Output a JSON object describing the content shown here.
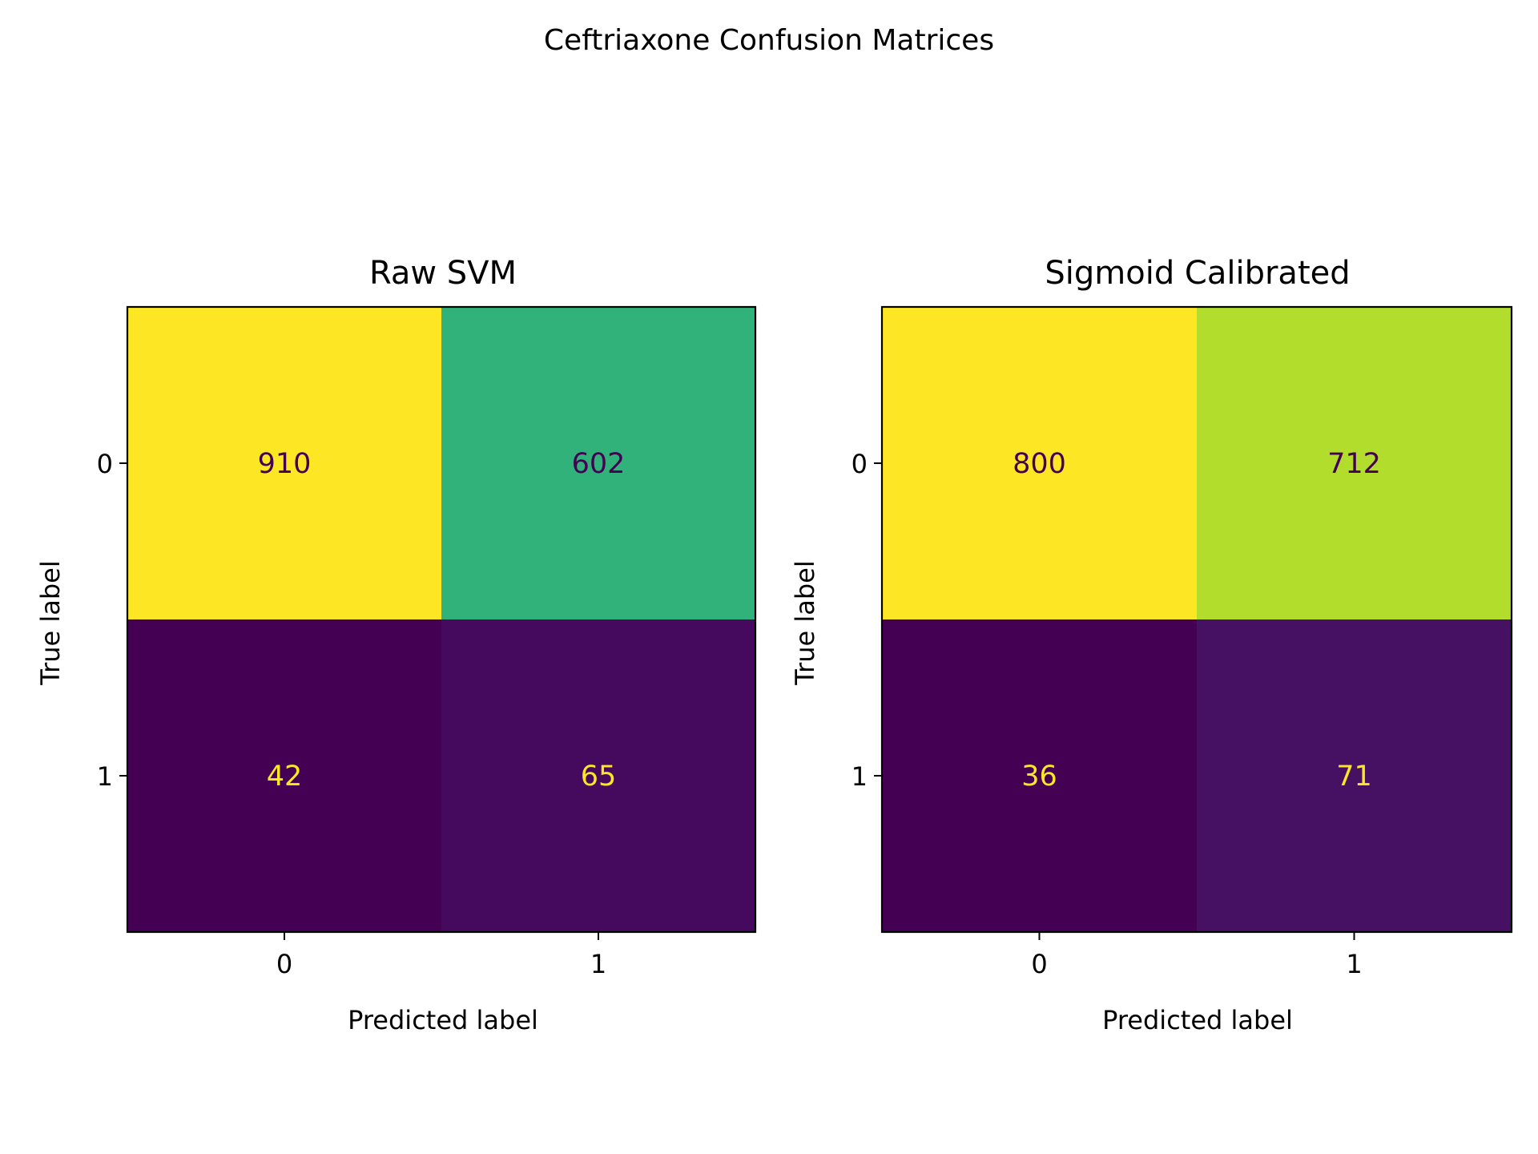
{
  "figure": {
    "suptitle": "Ceftriaxone Confusion Matrices"
  },
  "chart_data": [
    {
      "type": "heatmap",
      "title": "Raw SVM",
      "xlabel": "Predicted label",
      "ylabel": "True label",
      "x_ticks": [
        "0",
        "1"
      ],
      "y_ticks": [
        "0",
        "1"
      ],
      "values": [
        [
          910,
          602
        ],
        [
          42,
          65
        ]
      ],
      "colormap": "viridis",
      "grid": false
    },
    {
      "type": "heatmap",
      "title": "Sigmoid Calibrated",
      "xlabel": "Predicted label",
      "ylabel": "True label",
      "x_ticks": [
        "0",
        "1"
      ],
      "y_ticks": [
        "0",
        "1"
      ],
      "values": [
        [
          800,
          712
        ],
        [
          36,
          71
        ]
      ],
      "colormap": "viridis",
      "grid": false
    }
  ],
  "colors": {
    "text_on_light": "#440154",
    "text_on_dark": "#fde725"
  }
}
